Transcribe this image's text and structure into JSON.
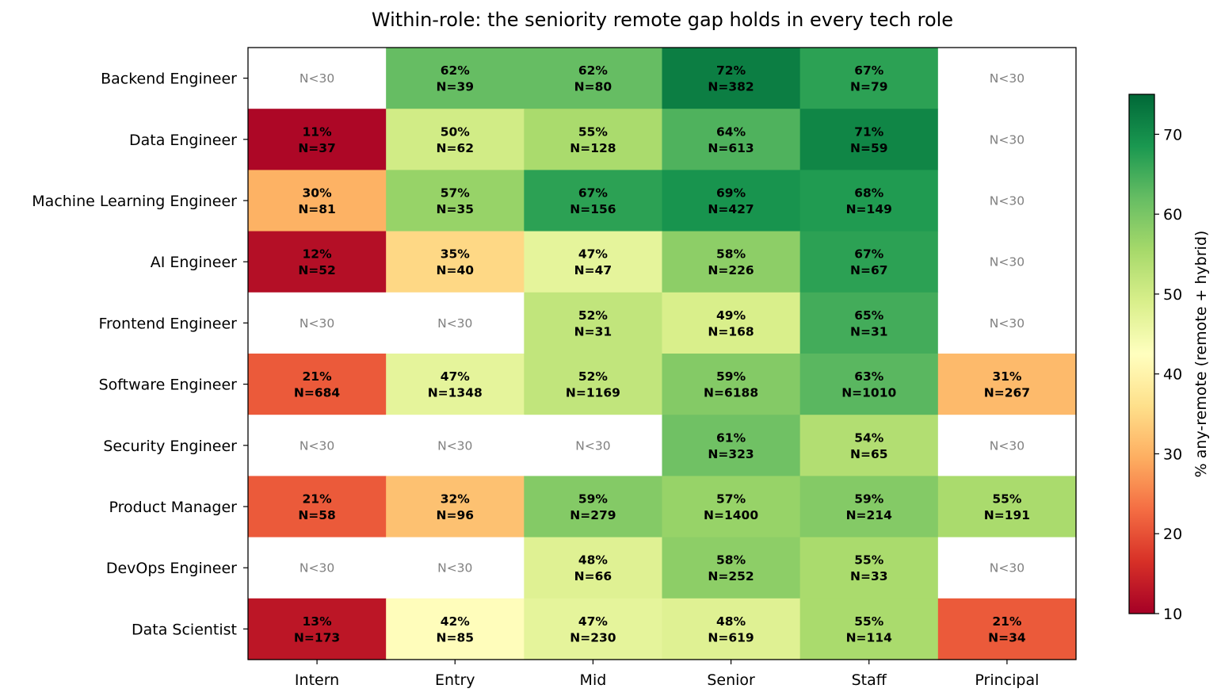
{
  "chart_data": {
    "type": "heatmap",
    "title": "Within-role: the seniority remote gap holds in every tech role",
    "x_categories": [
      "Intern",
      "Entry",
      "Mid",
      "Senior",
      "Staff",
      "Principal"
    ],
    "y_categories": [
      "Backend Engineer",
      "Data Engineer",
      "Machine Learning Engineer",
      "AI Engineer",
      "Frontend Engineer",
      "Software Engineer",
      "Security Engineer",
      "Product Manager",
      "DevOps Engineer",
      "Data Scientist"
    ],
    "values": [
      [
        null,
        62,
        62,
        72,
        67,
        null
      ],
      [
        11,
        50,
        55,
        64,
        71,
        null
      ],
      [
        30,
        57,
        67,
        69,
        68,
        null
      ],
      [
        12,
        35,
        47,
        58,
        67,
        null
      ],
      [
        null,
        null,
        52,
        49,
        65,
        null
      ],
      [
        21,
        47,
        52,
        59,
        63,
        31
      ],
      [
        null,
        null,
        null,
        61,
        54,
        null
      ],
      [
        21,
        32,
        59,
        57,
        59,
        55
      ],
      [
        null,
        null,
        48,
        58,
        55,
        null
      ],
      [
        13,
        42,
        47,
        48,
        55,
        21
      ]
    ],
    "counts": [
      [
        null,
        39,
        80,
        382,
        79,
        null
      ],
      [
        37,
        62,
        128,
        613,
        59,
        null
      ],
      [
        81,
        35,
        156,
        427,
        149,
        null
      ],
      [
        52,
        40,
        47,
        226,
        67,
        null
      ],
      [
        null,
        null,
        31,
        168,
        31,
        null
      ],
      [
        684,
        1348,
        1169,
        6188,
        1010,
        267
      ],
      [
        null,
        null,
        null,
        323,
        65,
        null
      ],
      [
        58,
        96,
        279,
        1400,
        214,
        191
      ],
      [
        null,
        null,
        66,
        252,
        33,
        null
      ],
      [
        173,
        85,
        230,
        619,
        114,
        34
      ]
    ],
    "missing_label": "N<30",
    "pct_suffix": "%",
    "n_prefix": "N=",
    "colorbar": {
      "label": "% any-remote (remote + hybrid)",
      "range": [
        10,
        75
      ],
      "ticks": [
        10,
        20,
        30,
        40,
        50,
        60,
        70
      ],
      "colormap": "RdYlGn"
    }
  }
}
